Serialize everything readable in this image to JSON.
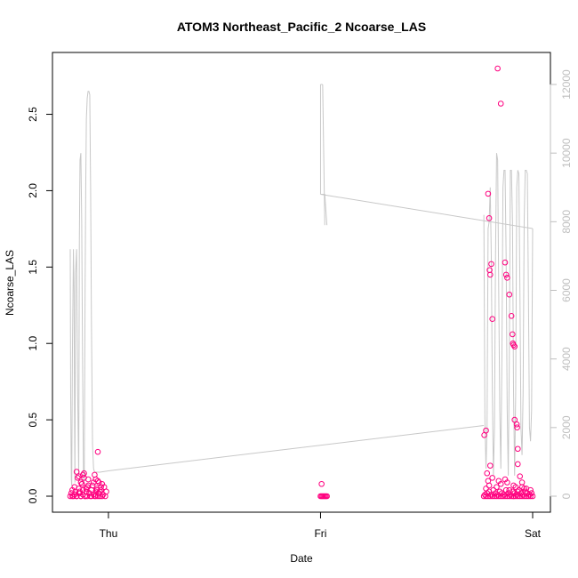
{
  "chart_data": {
    "type": "scatter",
    "title": "ATOM3 Northeast_Pacific_2 Ncoarse_LAS",
    "xlabel": "Date",
    "ylabel": "Ncoarse_LAS",
    "x_ticks": [
      "Thu",
      "Fri",
      "Sat"
    ],
    "x_tick_days": [
      1.0,
      2.0,
      3.0
    ],
    "xlim": [
      0.79,
      3.03
    ],
    "ylim": [
      0,
      2.8
    ],
    "y_ticks": [
      "0.0",
      "0.5",
      "1.0",
      "1.5",
      "2.0",
      "2.5"
    ],
    "y_tick_values": [
      0,
      0.5,
      1.0,
      1.5,
      2.0,
      2.5
    ],
    "y2lim": [
      0,
      12000
    ],
    "y2_ticks": [
      "0",
      "2000",
      "4000",
      "6000",
      "8000",
      "10000",
      "12000"
    ],
    "y2_tick_values": [
      0,
      2000,
      4000,
      6000,
      8000,
      10000,
      12000
    ],
    "colors": {
      "points": "#ff007f",
      "altitude_line": "#c8c8c8",
      "right_axis": "#bfbfbf"
    },
    "grid": false,
    "series": [
      {
        "kind": "points",
        "x": [
          0.82,
          0.825,
          0.83,
          0.835,
          0.84,
          0.845,
          0.85,
          0.855,
          0.86,
          0.865,
          0.87,
          0.875,
          0.88,
          0.885,
          0.89,
          0.895,
          0.9,
          0.905,
          0.91,
          0.915,
          0.92,
          0.925,
          0.93,
          0.935,
          0.94,
          0.945,
          0.95,
          0.955,
          0.96,
          0.965,
          0.97,
          0.975,
          0.98,
          0.985,
          0.99,
          0.83,
          0.84,
          0.85,
          0.86,
          0.87,
          0.88,
          0.89,
          0.9,
          0.91,
          0.92,
          0.93,
          0.94,
          0.95,
          0.96,
          0.97,
          0.85,
          0.86,
          0.87,
          0.88,
          0.895,
          0.905,
          0.935,
          0.94,
          0.955,
          0.965,
          0.865,
          0.875,
          0.885,
          0.945,
          0.95,
          2.0,
          2.005,
          2.01,
          2.015,
          2.02,
          2.025,
          2.03,
          2.005,
          2.77,
          2.775,
          2.78,
          2.785,
          2.79,
          2.795,
          2.8,
          2.805,
          2.81,
          2.815,
          2.82,
          2.825,
          2.83,
          2.835,
          2.84,
          2.845,
          2.85,
          2.855,
          2.86,
          2.865,
          2.87,
          2.875,
          2.88,
          2.885,
          2.89,
          2.895,
          2.9,
          2.905,
          2.91,
          2.915,
          2.92,
          2.925,
          2.93,
          2.935,
          2.94,
          2.945,
          2.95,
          2.955,
          2.96,
          2.965,
          2.97,
          2.975,
          2.98,
          2.985,
          2.99,
          2.995,
          3.0,
          2.78,
          2.79,
          2.8,
          2.81,
          2.83,
          2.85,
          2.87,
          2.89,
          2.91,
          2.93,
          2.95,
          2.97,
          2.99,
          2.785,
          2.795,
          2.84,
          2.88,
          2.92,
          2.96,
          2.772,
          2.78,
          2.79,
          2.795,
          2.797,
          2.8,
          2.805,
          2.81,
          2.835,
          2.85,
          2.87,
          2.875,
          2.88,
          2.89,
          2.9,
          2.905,
          2.907,
          2.91,
          2.915,
          2.915,
          2.925,
          2.927,
          2.93,
          2.93,
          2.94,
          2.95,
          2.91
        ],
        "y": [
          0.0,
          0.02,
          0.04,
          0.0,
          0.06,
          0.03,
          0.0,
          0.12,
          0.05,
          0.02,
          0.0,
          0.08,
          0.04,
          0.15,
          0.0,
          0.03,
          0.06,
          0.11,
          0.02,
          0.0,
          0.04,
          0.07,
          0.09,
          0.0,
          0.03,
          0.05,
          0.1,
          0.02,
          0.0,
          0.04,
          0.08,
          0.01,
          0.06,
          0.0,
          0.03,
          0.0,
          0.01,
          0.0,
          0.02,
          0.0,
          0.01,
          0.0,
          0.0,
          0.02,
          0.0,
          0.01,
          0.0,
          0.0,
          0.03,
          0.0,
          0.16,
          0.13,
          0.09,
          0.14,
          0.05,
          0.07,
          0.14,
          0.11,
          0.09,
          0.06,
          0.03,
          0.08,
          0.12,
          0.04,
          0.29,
          0.0,
          0.0,
          0.0,
          0.0,
          0.0,
          0.0,
          0.0,
          0.08,
          0.0,
          0.01,
          0.0,
          0.02,
          0.0,
          0.03,
          0.0,
          0.01,
          0.0,
          0.04,
          0.0,
          0.02,
          0.0,
          0.01,
          0.0,
          0.03,
          0.0,
          0.02,
          0.0,
          0.01,
          0.0,
          0.04,
          0.0,
          0.02,
          0.0,
          0.01,
          0.0,
          0.03,
          0.0,
          0.02,
          0.0,
          0.01,
          0.0,
          0.04,
          0.0,
          0.02,
          0.0,
          0.01,
          0.0,
          0.03,
          0.0,
          0.02,
          0.0,
          0.01,
          0.0,
          0.02,
          0.0,
          0.05,
          0.1,
          0.2,
          0.12,
          0.06,
          0.08,
          0.11,
          0.04,
          0.07,
          0.03,
          0.06,
          0.05,
          0.04,
          0.15,
          0.07,
          0.1,
          0.09,
          0.06,
          0.05,
          0.4,
          0.43,
          1.98,
          1.82,
          1.48,
          1.45,
          1.52,
          1.16,
          2.8,
          2.57,
          1.53,
          1.45,
          1.43,
          1.32,
          1.18,
          1.06,
          1.0,
          0.99,
          0.98,
          0.5,
          0.47,
          0.45,
          0.31,
          0.21,
          0.13,
          0.09,
          0.0
        ]
      },
      {
        "kind": "line",
        "axis": "right",
        "x": [
          0.82,
          0.822,
          0.825,
          0.827,
          0.83,
          0.835,
          0.838,
          0.84,
          0.842,
          0.845,
          0.85,
          0.855,
          0.86,
          0.863,
          0.866,
          0.87,
          0.874,
          0.878,
          0.882,
          0.886,
          0.89,
          0.893,
          0.896,
          0.9,
          0.904,
          0.908,
          0.912,
          0.916,
          0.92,
          0.925,
          0.93,
          0.935,
          0.94,
          0.945,
          0.95,
          0.96,
          0.97,
          0.98,
          0.99,
          1.0,
          2.0,
          2.01,
          2.02,
          2.03,
          2.77,
          2.775,
          2.78,
          2.785,
          2.79,
          2.795,
          2.8,
          2.805,
          2.81,
          2.815,
          2.82,
          2.825,
          2.83,
          2.835,
          2.84,
          2.845,
          2.85,
          2.855,
          2.86,
          2.865,
          2.87,
          2.875,
          2.88,
          2.885,
          2.89,
          2.895,
          2.9,
          2.905,
          2.91,
          2.915,
          2.92,
          2.925,
          2.93,
          2.935,
          2.94,
          2.945,
          2.95,
          2.955,
          2.96,
          2.965,
          2.97,
          2.975,
          2.98,
          2.985,
          2.99,
          2.995,
          3.0
        ],
        "y": [
          7200,
          3000,
          500,
          300,
          4000,
          7200,
          6000,
          2500,
          400,
          6500,
          7200,
          3000,
          600,
          7500,
          9800,
          10000,
          8000,
          4000,
          800,
          400,
          6000,
          9000,
          11000,
          11600,
          11800,
          11800,
          11700,
          9000,
          5000,
          1500,
          800,
          700,
          700,
          700,
          700,
          700,
          710,
          720,
          730,
          740,
          8800,
          8800,
          8800,
          7900,
          8200,
          2200,
          800,
          2000,
          7800,
          8000,
          9000,
          7000,
          3000,
          600,
          2000,
          7000,
          10000,
          9800,
          6000,
          2500,
          800,
          4000,
          9000,
          9500,
          9500,
          7000,
          2500,
          600,
          4000,
          9500,
          9500,
          8000,
          3000,
          600,
          3000,
          9000,
          9500,
          9400,
          6000,
          2000,
          1200,
          3000,
          8000,
          9500,
          9500,
          9400,
          6000,
          2000,
          1600,
          2500,
          7800
        ],
        "jump_segments": [
          {
            "from": [
              1.0,
              740
            ],
            "to": [
              2.77,
              2060
            ]
          },
          {
            "from": [
              2.0,
              8800
            ],
            "to": [
              2.05,
              8800
            ],
            "note": ""
          },
          {
            "from": [
              2.03,
              7900
            ],
            "to": [
              2.03,
              7900
            ]
          },
          {
            "from": [
              2.0,
              8800
            ],
            "to": [
              3.0,
              7800
            ]
          }
        ]
      }
    ]
  }
}
